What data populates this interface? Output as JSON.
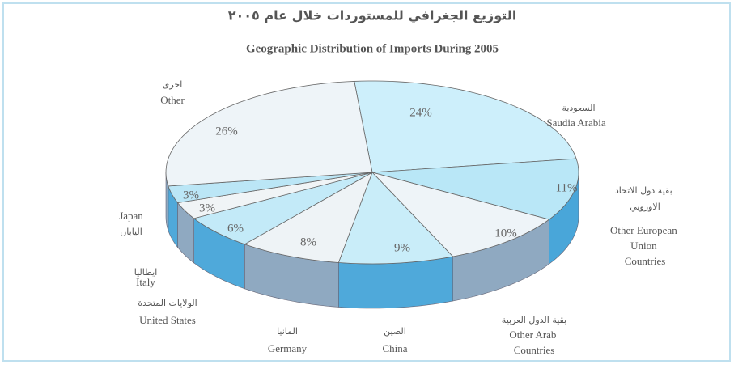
{
  "chart_data": {
    "type": "pie3d",
    "title": "التوزيع الجغرافي للمستوردات خلال عام ٢٠٠٥",
    "subtitle": "Geographic Distribution of Imports During  2005",
    "categories": [
      "Saudia Arabia",
      "Other European Union Countries",
      "Other Arab Countries",
      "China",
      "Germany",
      "United States",
      "Italy",
      "Japan",
      "Other"
    ],
    "categories_ar": [
      "السعودية",
      "بقية دول الاتحاد الاوروبي",
      "بقية الدول العربية",
      "الصين",
      "المانيا",
      "الولايات المتحدة",
      "ايطاليا",
      "اليابان",
      "اخرى"
    ],
    "values": [
      24,
      11,
      10,
      9,
      8,
      6,
      3,
      3,
      26
    ],
    "value_labels": [
      "24%",
      "11%",
      "10%",
      "9%",
      "8%",
      "6%",
      "3%",
      "3%",
      "26%"
    ],
    "colors": [
      "#cdeffb",
      "#b9e7f7",
      "#eef4f8",
      "#c9edf9",
      "#eef3f6",
      "#c3eaf8",
      "#f0f4f6",
      "#bbe6f6",
      "#eef4f8"
    ],
    "side_colors": [
      "#5fb6df",
      "#49a6d9",
      "#8fa9c1",
      "#4fa9da",
      "#8fa9c1",
      "#4fa9da",
      "#8fa9c1",
      "#4fa9da",
      "#8fa9c1"
    ]
  }
}
